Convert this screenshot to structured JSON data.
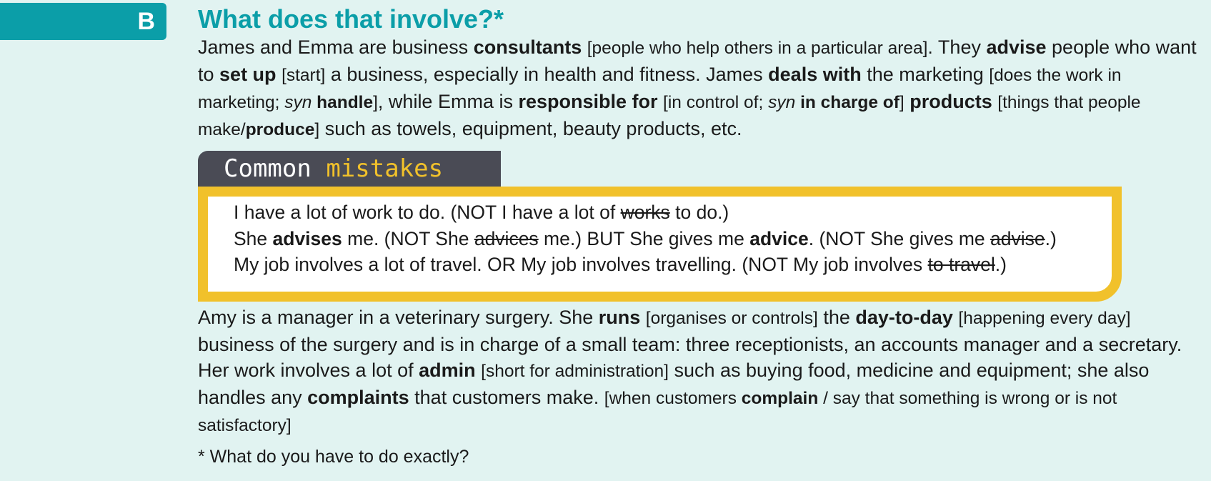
{
  "section": {
    "letter": "B",
    "title": "What does that involve?*"
  },
  "para1": {
    "s1": "James and Emma are business ",
    "consultants": "consultants",
    "g1": "[people who help others in a particular area]",
    "s2": ". They ",
    "advise": "advise",
    "s3": " people who want to ",
    "set_up": "set up",
    "g2": "[start]",
    "s4": " a business, especially in health and fitness. James ",
    "deals_with": "deals with",
    "s5": " the marketing ",
    "g3a": "[does the work in marketing; ",
    "syn1": "syn",
    "handle": "handle",
    "g3b": "]",
    "s6": ", while Emma is ",
    "responsible_for": "responsible for",
    "g4a": "[in control of; ",
    "syn2": "syn",
    "in_charge_of": "in charge of",
    "g4b": "]",
    "products": "products",
    "g5a": "[things that people make/",
    "produce": "produce",
    "g5b": "]",
    "s7": " such as towels, equipment, beauty products, etc."
  },
  "common_mistakes": {
    "word1": "Common",
    "word2": "mistakes",
    "line1": {
      "a": "I have a lot of work to do. (NOT I have a lot of ",
      "wrong": "works",
      "b": " to do.)"
    },
    "line2": {
      "a": "She ",
      "advises": "advises",
      "b": " me. (NOT She ",
      "wrong1": "advices",
      "c": " me.) BUT She gives me ",
      "advice": "advice",
      "d": ". (NOT She gives me ",
      "wrong2": "advise",
      "e": ".)"
    },
    "line3": {
      "a": "My job involves a lot of travel. OR My job involves travelling. (NOT My job involves ",
      "wrong": "to travel",
      "b": ".)"
    }
  },
  "para2": {
    "s1": "Amy is a manager in a veterinary surgery. She ",
    "runs": "runs",
    "g1": "[organises or controls]",
    "s2": " the ",
    "day_to_day": "day-to-day",
    "g2": "[happening every day]",
    "s3": " business of the surgery and is in charge of a small team: three receptionists, an accounts manager and a secretary. Her work involves a lot of ",
    "admin": "admin",
    "g3": "[short for administration]",
    "s4": " such as buying food, medicine and equipment; she also handles any ",
    "complaints": "complaints",
    "s5": " that customers make. ",
    "g4a": "[when customers ",
    "complain": "complain",
    "g4b": " / say that something is wrong or is not satisfactory]"
  },
  "footnote": "* What do you have to do exactly?",
  "colors": {
    "background": "#e1f3f1",
    "teal": "#0b9ea8",
    "yellow": "#f1c12b",
    "dark_gray": "#4a4b55"
  }
}
